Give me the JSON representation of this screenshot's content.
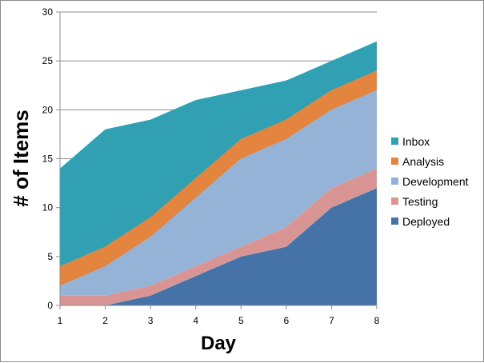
{
  "chart_data": {
    "type": "area",
    "stacked": true,
    "title": "",
    "xlabel": "Day",
    "ylabel": "# of Items",
    "x": [
      1,
      2,
      3,
      4,
      5,
      6,
      7,
      8
    ],
    "ylim": [
      0,
      30
    ],
    "yticks": [
      0,
      5,
      10,
      15,
      20,
      25,
      30
    ],
    "grid": true,
    "legend_position": "right",
    "series": [
      {
        "name": "Deployed",
        "color": "#4573a7",
        "values": [
          0,
          0,
          1,
          3,
          5,
          6,
          10,
          12
        ]
      },
      {
        "name": "Testing",
        "color": "#d99594",
        "values": [
          1,
          1,
          1,
          1,
          1,
          2,
          2,
          2
        ]
      },
      {
        "name": "Development",
        "color": "#95b3d7",
        "values": [
          1,
          3,
          5,
          7,
          9,
          9,
          8,
          8
        ]
      },
      {
        "name": "Analysis",
        "color": "#e3843f",
        "values": [
          2,
          2,
          2,
          2,
          2,
          2,
          2,
          2
        ]
      },
      {
        "name": "Inbox",
        "color": "#31a0b3",
        "values": [
          10,
          12,
          10,
          8,
          5,
          4,
          3,
          3
        ]
      }
    ]
  }
}
